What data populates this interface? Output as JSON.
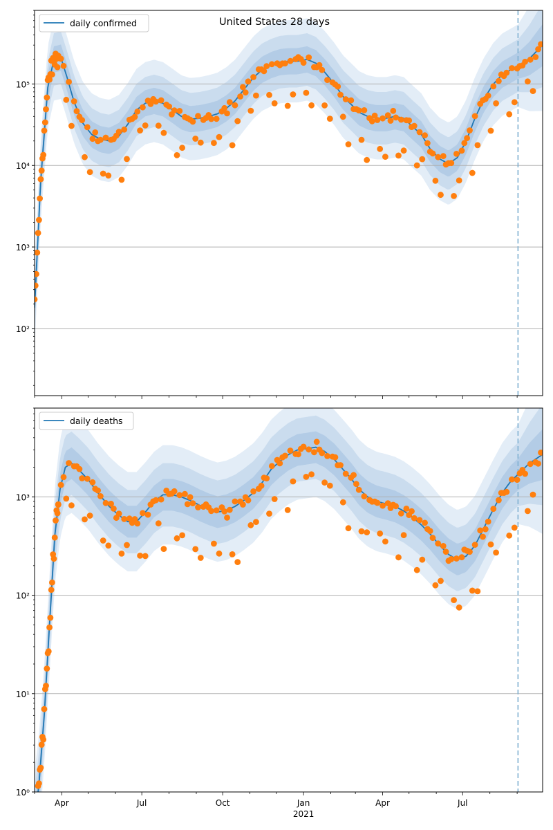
{
  "chart_data": [
    {
      "type": "line",
      "title": "United States 28 days",
      "yscale": "log",
      "ylim": [
        15,
        800000
      ],
      "x_range": [
        "2020-03-01",
        "2021-09-30"
      ],
      "grid": "y-major",
      "legend_position": "top-left",
      "legend": [
        "daily confirmed"
      ],
      "vline": "2021-09-02",
      "y_ticks": [
        {
          "value": 100,
          "label": "10²"
        },
        {
          "value": 1000,
          "label": "10³"
        },
        {
          "value": 10000,
          "label": "10⁴"
        },
        {
          "value": 100000,
          "label": "10⁵"
        }
      ],
      "series": [
        {
          "name": "daily confirmed",
          "kind": "model-median-with-bands",
          "points": [
            [
              "2020-03-01",
              180
            ],
            [
              "2020-03-08",
              6500
            ],
            [
              "2020-03-16",
              90000
            ],
            [
              "2020-03-23",
              200000
            ],
            [
              "2020-03-31",
              210000
            ],
            [
              "2020-04-07",
              120000
            ],
            [
              "2020-04-15",
              60000
            ],
            [
              "2020-04-25",
              33000
            ],
            [
              "2020-05-05",
              24000
            ],
            [
              "2020-05-15",
              21000
            ],
            [
              "2020-05-25",
              20000
            ],
            [
              "2020-06-05",
              23000
            ],
            [
              "2020-06-15",
              32000
            ],
            [
              "2020-06-25",
              48000
            ],
            [
              "2020-07-05",
              58000
            ],
            [
              "2020-07-15",
              62000
            ],
            [
              "2020-07-25",
              58000
            ],
            [
              "2020-08-05",
              48000
            ],
            [
              "2020-08-15",
              40000
            ],
            [
              "2020-08-25",
              37000
            ],
            [
              "2020-09-05",
              38000
            ],
            [
              "2020-09-15",
              40000
            ],
            [
              "2020-09-25",
              43000
            ],
            [
              "2020-10-05",
              50000
            ],
            [
              "2020-10-15",
              62000
            ],
            [
              "2020-10-25",
              85000
            ],
            [
              "2020-11-05",
              120000
            ],
            [
              "2020-11-15",
              150000
            ],
            [
              "2020-11-25",
              170000
            ],
            [
              "2020-12-05",
              185000
            ],
            [
              "2020-12-15",
              190000
            ],
            [
              "2020-12-25",
              190000
            ],
            [
              "2021-01-05",
              200000
            ],
            [
              "2021-01-15",
              180000
            ],
            [
              "2021-01-25",
              140000
            ],
            [
              "2021-02-05",
              100000
            ],
            [
              "2021-02-15",
              70000
            ],
            [
              "2021-02-25",
              55000
            ],
            [
              "2021-03-05",
              45000
            ],
            [
              "2021-03-15",
              40000
            ],
            [
              "2021-03-25",
              38000
            ],
            [
              "2021-04-05",
              38000
            ],
            [
              "2021-04-15",
              40000
            ],
            [
              "2021-04-25",
              38000
            ],
            [
              "2021-05-05",
              30000
            ],
            [
              "2021-05-15",
              24000
            ],
            [
              "2021-05-25",
              16000
            ],
            [
              "2021-06-05",
              12000
            ],
            [
              "2021-06-15",
              10500
            ],
            [
              "2021-06-25",
              12500
            ],
            [
              "2021-07-05",
              20000
            ],
            [
              "2021-07-15",
              38000
            ],
            [
              "2021-07-25",
              65000
            ],
            [
              "2021-08-05",
              100000
            ],
            [
              "2021-08-15",
              130000
            ],
            [
              "2021-08-25",
              150000
            ],
            [
              "2021-09-05",
              175000
            ],
            [
              "2021-09-15",
              205000
            ],
            [
              "2021-09-30",
              300000
            ]
          ]
        },
        {
          "name": "",
          "kind": "reported-scatter",
          "clusters": [
            {
              "from": "2020-03-01",
              "to": "2020-03-28",
              "days": 1
            },
            {
              "from": "2020-03-28",
              "to": "2021-09-30",
              "days": 3,
              "weekly_low": true
            }
          ]
        }
      ]
    },
    {
      "type": "line",
      "title": "",
      "yscale": "log",
      "ylim": [
        1,
        8000
      ],
      "x_range": [
        "2020-03-01",
        "2021-09-30"
      ],
      "grid": "y-major",
      "legend_position": "top-left",
      "legend": [
        "daily deaths"
      ],
      "vline": "2021-09-02",
      "y_ticks": [
        {
          "value": 1,
          "label": "10⁰"
        },
        {
          "value": 10,
          "label": "10¹"
        },
        {
          "value": 100,
          "label": "10²"
        },
        {
          "value": 1000,
          "label": "10³"
        }
      ],
      "x_ticks": [
        {
          "date": "2020-04-01",
          "label": "Apr"
        },
        {
          "date": "2020-07-01",
          "label": "Jul"
        },
        {
          "date": "2020-10-01",
          "label": "Oct"
        },
        {
          "date": "2021-01-01",
          "label": "Jan"
        },
        {
          "date": "2021-04-01",
          "label": "Apr"
        },
        {
          "date": "2021-07-01",
          "label": "Jul"
        }
      ],
      "x_year_label": {
        "date": "2021-01-01",
        "label": "2021"
      },
      "series": [
        {
          "name": "daily deaths",
          "kind": "model-median-with-bands",
          "points": [
            [
              "2020-03-01",
              0.5
            ],
            [
              "2020-03-06",
              1.2
            ],
            [
              "2020-03-12",
              6
            ],
            [
              "2020-03-18",
              50
            ],
            [
              "2020-03-24",
              400
            ],
            [
              "2020-03-30",
              1200
            ],
            [
              "2020-04-05",
              2000
            ],
            [
              "2020-04-12",
              2200
            ],
            [
              "2020-04-20",
              1900
            ],
            [
              "2020-05-01",
              1500
            ],
            [
              "2020-05-12",
              1100
            ],
            [
              "2020-05-25",
              800
            ],
            [
              "2020-06-05",
              650
            ],
            [
              "2020-06-15",
              560
            ],
            [
              "2020-06-25",
              560
            ],
            [
              "2020-07-05",
              700
            ],
            [
              "2020-07-15",
              900
            ],
            [
              "2020-07-25",
              1050
            ],
            [
              "2020-08-05",
              1050
            ],
            [
              "2020-08-15",
              1000
            ],
            [
              "2020-08-25",
              920
            ],
            [
              "2020-09-05",
              820
            ],
            [
              "2020-09-15",
              750
            ],
            [
              "2020-09-25",
              700
            ],
            [
              "2020-10-05",
              730
            ],
            [
              "2020-10-15",
              800
            ],
            [
              "2020-10-25",
              920
            ],
            [
              "2020-11-05",
              1100
            ],
            [
              "2020-11-15",
              1400
            ],
            [
              "2020-11-25",
              1900
            ],
            [
              "2020-12-05",
              2300
            ],
            [
              "2020-12-15",
              2700
            ],
            [
              "2020-12-25",
              3000
            ],
            [
              "2021-01-05",
              3100
            ],
            [
              "2021-01-15",
              3200
            ],
            [
              "2021-01-25",
              2900
            ],
            [
              "2021-02-05",
              2400
            ],
            [
              "2021-02-15",
              1900
            ],
            [
              "2021-02-25",
              1500
            ],
            [
              "2021-03-05",
              1200
            ],
            [
              "2021-03-15",
              1000
            ],
            [
              "2021-03-25",
              900
            ],
            [
              "2021-04-05",
              850
            ],
            [
              "2021-04-15",
              800
            ],
            [
              "2021-04-25",
              720
            ],
            [
              "2021-05-05",
              620
            ],
            [
              "2021-05-15",
              520
            ],
            [
              "2021-05-25",
              420
            ],
            [
              "2021-06-05",
              320
            ],
            [
              "2021-06-15",
              260
            ],
            [
              "2021-06-25",
              230
            ],
            [
              "2021-07-05",
              250
            ],
            [
              "2021-07-15",
              320
            ],
            [
              "2021-07-25",
              480
            ],
            [
              "2021-08-05",
              750
            ],
            [
              "2021-08-15",
              1100
            ],
            [
              "2021-08-25",
              1450
            ],
            [
              "2021-09-05",
              1800
            ],
            [
              "2021-09-15",
              2200
            ],
            [
              "2021-09-30",
              2700
            ]
          ]
        },
        {
          "name": "",
          "kind": "reported-scatter",
          "clusters": [
            {
              "from": "2020-03-01",
              "to": "2020-03-28",
              "days": 1
            },
            {
              "from": "2020-03-28",
              "to": "2021-09-30",
              "days": 3,
              "weekly_low": true
            }
          ]
        }
      ]
    }
  ],
  "colors": {
    "line": "#1f77b4",
    "band_outer": "#e3edf7",
    "band_mid": "#cadcee",
    "band_inner": "#b3cce6",
    "scatter": "#ff7f0e",
    "vline": "#7fb0d1",
    "grid": "#b0b0b0"
  }
}
